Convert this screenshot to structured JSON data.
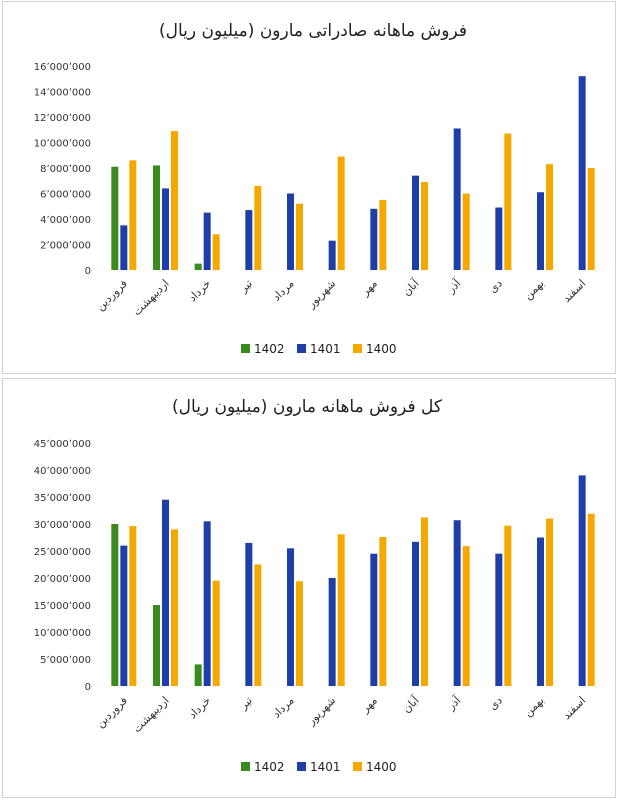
{
  "chart_data": [
    {
      "type": "bar",
      "title": "فروش ماهانه صادراتی مارون (میلیون ریال)",
      "categories": [
        "فروردین",
        "اردیبهشت",
        "خرداد",
        "تیر",
        "مرداد",
        "شهریور",
        "مهر",
        "آبان",
        "آذر",
        "دی",
        "بهمن",
        "اسفند"
      ],
      "ylim": [
        0,
        16000000
      ],
      "yticks": [
        0,
        2000000,
        4000000,
        6000000,
        8000000,
        10000000,
        12000000,
        14000000,
        16000000
      ],
      "ytick_labels": [
        "0",
        "2٬000٬000",
        "4٬000٬000",
        "6٬000٬000",
        "8٬000٬000",
        "10٬000٬000",
        "12٬000٬000",
        "14٬000٬000",
        "16٬000٬000"
      ],
      "grid": false,
      "legend_position": "bottom",
      "series": [
        {
          "name": "1402",
          "color": "#3a8a1e",
          "values": [
            8100000,
            8200000,
            500000,
            null,
            null,
            null,
            null,
            null,
            null,
            null,
            null,
            null
          ]
        },
        {
          "name": "1401",
          "color": "#1f3fa8",
          "values": [
            3500000,
            6400000,
            4500000,
            4700000,
            6000000,
            2300000,
            4800000,
            7400000,
            11100000,
            4900000,
            6100000,
            15200000
          ]
        },
        {
          "name": "1400",
          "color": "#f5a800",
          "values": [
            8600000,
            10900000,
            2800000,
            6600000,
            5200000,
            8900000,
            5500000,
            6900000,
            6000000,
            10700000,
            8300000,
            8000000
          ]
        }
      ]
    },
    {
      "type": "bar",
      "title": "کل فروش ماهانه مارون (میلیون ریال)",
      "categories": [
        "فروردین",
        "اردیبهشت",
        "خرداد",
        "تیر",
        "مرداد",
        "شهریور",
        "مهر",
        "آبان",
        "آذر",
        "دی",
        "بهمن",
        "اسفند"
      ],
      "ylim": [
        0,
        45000000
      ],
      "yticks": [
        0,
        5000000,
        10000000,
        15000000,
        20000000,
        25000000,
        30000000,
        35000000,
        40000000,
        45000000
      ],
      "ytick_labels": [
        "0",
        "5٬000٬000",
        "10٬000٬000",
        "15٬000٬000",
        "20٬000٬000",
        "25٬000٬000",
        "30٬000٬000",
        "35٬000٬000",
        "40٬000٬000",
        "45٬000٬000"
      ],
      "grid": false,
      "legend_position": "bottom",
      "series": [
        {
          "name": "1402",
          "color": "#3a8a1e",
          "values": [
            30000000,
            15000000,
            4000000,
            null,
            null,
            null,
            null,
            null,
            null,
            null,
            null,
            null
          ]
        },
        {
          "name": "1401",
          "color": "#1f3fa8",
          "values": [
            26000000,
            34500000,
            30500000,
            26500000,
            25500000,
            20000000,
            24500000,
            26700000,
            30700000,
            24500000,
            27500000,
            39000000
          ]
        },
        {
          "name": "1400",
          "color": "#f5a800",
          "values": [
            29600000,
            29000000,
            19500000,
            22500000,
            19400000,
            28100000,
            27600000,
            31200000,
            25900000,
            29700000,
            31000000,
            31900000
          ]
        }
      ]
    }
  ]
}
